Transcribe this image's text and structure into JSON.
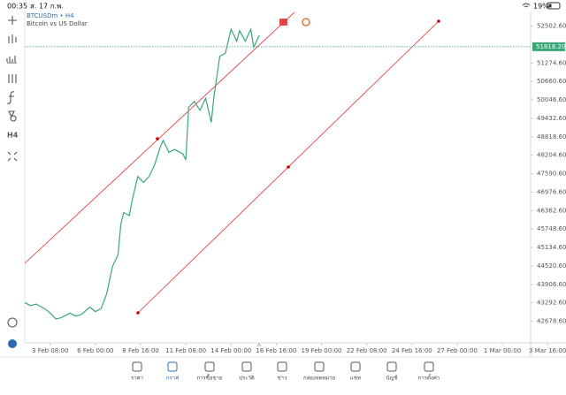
{
  "status_bar": {
    "time": "00:35",
    "date": "ส. 17 ก.พ.",
    "battery": "19%"
  },
  "chart_header": {
    "symbol": "BTCUSDm • H4",
    "description": "Bitcoin vs US Dollar"
  },
  "toolbar": {
    "timeframe": "H4"
  },
  "chart_data": {
    "type": "line",
    "series": [
      {
        "name": "BTCUSDm",
        "color": "#3aa876",
        "x": [
          -9,
          -7,
          -5,
          -2,
          0,
          2,
          4,
          7,
          9,
          11,
          14,
          16,
          18,
          20,
          22,
          24,
          25,
          26,
          28,
          29,
          31,
          33,
          35,
          37,
          39,
          40,
          42,
          44,
          47,
          48,
          49,
          51,
          53,
          55,
          57,
          58,
          60,
          62,
          64,
          66,
          67,
          69,
          71,
          72,
          74
        ],
        "values": [
          43300,
          43200,
          43250,
          43100,
          42950,
          42750,
          42800,
          42950,
          42850,
          42900,
          43150,
          43000,
          43100,
          43600,
          44500,
          44900,
          45900,
          46300,
          46200,
          46700,
          47500,
          47300,
          47500,
          47900,
          48500,
          48700,
          48300,
          48400,
          48250,
          48050,
          49800,
          50000,
          49700,
          50100,
          49300,
          50200,
          51500,
          51600,
          52400,
          52000,
          52350,
          52000,
          52400,
          51800,
          52200
        ]
      }
    ],
    "last_price": {
      "value": 51818.2,
      "label": "51818.20"
    },
    "xlim": [
      -9,
      170
    ],
    "ylim": [
      41960,
      52962
    ],
    "xticks": [
      {
        "value": 0,
        "label": "3 Feb 08:00"
      },
      {
        "value": 16,
        "label": "6 Feb 00:00"
      },
      {
        "value": 32,
        "label": "8 Feb 16:00"
      },
      {
        "value": 48,
        "label": "11 Feb 08:00"
      },
      {
        "value": 64,
        "label": "14 Feb 00:00"
      },
      {
        "value": 80,
        "label": "16 Feb 16:00"
      },
      {
        "value": 96,
        "label": "19 Feb 00:00"
      },
      {
        "value": 112,
        "label": "22 Feb 08:00"
      },
      {
        "value": 128,
        "label": "24 Feb 16:00"
      },
      {
        "value": 144,
        "label": "27 Feb 00:00"
      },
      {
        "value": 160,
        "label": "1 Mar 00:00"
      },
      {
        "value": 176,
        "label": "3 Mar 16:00"
      }
    ],
    "yticks": [
      {
        "value": 52502.6,
        "label": "52502.60"
      },
      {
        "value": 51274.6,
        "label": "51274.60"
      },
      {
        "value": 50660.6,
        "label": "50660.60"
      },
      {
        "value": 50046.6,
        "label": "50046.60"
      },
      {
        "value": 49432.6,
        "label": "49432.60"
      },
      {
        "value": 48818.6,
        "label": "48818.60"
      },
      {
        "value": 48204.6,
        "label": "48204.60"
      },
      {
        "value": 47590.6,
        "label": "47590.60"
      },
      {
        "value": 46976.6,
        "label": "46976.60"
      },
      {
        "value": 46362.6,
        "label": "46362.60"
      },
      {
        "value": 45748.6,
        "label": "45748.60"
      },
      {
        "value": 45134.6,
        "label": "45134.60"
      },
      {
        "value": 44520.6,
        "label": "44520.60"
      },
      {
        "value": 43906.6,
        "label": "43906.60"
      },
      {
        "value": 43292.6,
        "label": "43292.60"
      },
      {
        "value": 42678.6,
        "label": "42678.60"
      }
    ],
    "grid": false
  },
  "tabs": [
    "ราคา",
    "กราฟ",
    "การซื้อขาย",
    "ประวัติ",
    "ข่าว",
    "กล่องจดหมาย",
    "แชท",
    "บัญชี",
    "การตั้งค่า"
  ],
  "active_tab": 1
}
